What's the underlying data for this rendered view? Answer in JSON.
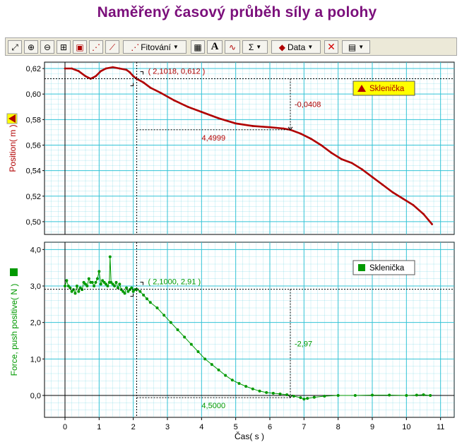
{
  "title": "Naměřený časový průběh síly a polohy",
  "toolbar": {
    "items": [
      {
        "name": "autoscale-icon",
        "glyph": "⤢"
      },
      {
        "name": "zoom-in-icon",
        "glyph": "⊕"
      },
      {
        "name": "zoom-out-icon",
        "glyph": "⊖"
      },
      {
        "name": "zoom-box-icon",
        "glyph": "⊞"
      },
      {
        "name": "examine-icon",
        "glyph": "▣"
      },
      {
        "name": "tangent-icon",
        "glyph": "⋰"
      },
      {
        "name": "slope-icon",
        "glyph": "⟋"
      }
    ],
    "fit_label": "Fitování",
    "calculator_icon": "calculator-icon",
    "annotate_label": "A",
    "stats_label": "Σ",
    "data_label": "Data",
    "delete_icon": "delete-icon",
    "graph_options_icon": "graph-options-icon"
  },
  "colors": {
    "position": "#b00000",
    "force": "#009900",
    "grid": "#33c3d6",
    "title": "#7b0f7b"
  },
  "chart_data": [
    {
      "type": "line",
      "title": "",
      "xlabel": "Čas( s )",
      "ylabel": "Position( m )",
      "xlim": [
        -0.6,
        11.4
      ],
      "ylim": [
        0.49,
        0.625
      ],
      "xticks": [
        "0",
        "1",
        "2",
        "3",
        "4",
        "5",
        "6",
        "7",
        "8",
        "9",
        "10",
        "11"
      ],
      "yticks": [
        "0,50",
        "0,52",
        "0,54",
        "0,56",
        "0,58",
        "0,60",
        "0,62"
      ],
      "yticks_values": [
        0.5,
        0.52,
        0.54,
        0.56,
        0.58,
        0.6,
        0.62
      ],
      "legend": "Sklenička",
      "legend_position": "top-right",
      "grid": true,
      "series": [
        {
          "name": "Sklenička",
          "x": [
            0,
            0.2,
            0.4,
            0.6,
            0.75,
            0.9,
            1.05,
            1.2,
            1.4,
            1.6,
            1.8,
            1.9,
            2.0,
            2.1,
            2.3,
            2.5,
            2.8,
            3.2,
            3.6,
            4.0,
            4.5,
            5.0,
            5.5,
            6.0,
            6.4,
            6.6,
            6.9,
            7.2,
            7.5,
            7.8,
            8.1,
            8.4,
            8.7,
            9.0,
            9.3,
            9.6,
            9.9,
            10.2,
            10.5,
            10.75
          ],
          "y": [
            0.62,
            0.62,
            0.618,
            0.614,
            0.612,
            0.614,
            0.618,
            0.62,
            0.621,
            0.62,
            0.619,
            0.617,
            0.614,
            0.612,
            0.609,
            0.605,
            0.601,
            0.595,
            0.59,
            0.586,
            0.581,
            0.577,
            0.575,
            0.574,
            0.573,
            0.572,
            0.569,
            0.565,
            0.56,
            0.554,
            0.549,
            0.546,
            0.541,
            0.535,
            0.529,
            0.523,
            0.518,
            0.513,
            0.506,
            0.498
          ]
        }
      ],
      "annotations": {
        "point_label": "( 2,1018, 0,612 )",
        "point_x": 2.1018,
        "point_y": 0.612,
        "end_x": 6.6,
        "end_y": 0.572,
        "dx_label": "4,4999",
        "dy_label": "-0,0408"
      }
    },
    {
      "type": "line",
      "title": "",
      "xlabel": "Čas( s )",
      "ylabel": "Force, push positive( N )",
      "xlim": [
        -0.6,
        11.4
      ],
      "ylim": [
        -0.6,
        4.2
      ],
      "xticks": [
        "0",
        "1",
        "2",
        "3",
        "4",
        "5",
        "6",
        "7",
        "8",
        "9",
        "10",
        "11"
      ],
      "yticks": [
        "0,0",
        "1,0",
        "2,0",
        "3,0",
        "4,0"
      ],
      "yticks_values": [
        0,
        1,
        2,
        3,
        4
      ],
      "legend": "Sklenička",
      "legend_position": "top-right",
      "grid": true,
      "series": [
        {
          "name": "Sklenička",
          "x": [
            0,
            0.05,
            0.1,
            0.15,
            0.2,
            0.25,
            0.3,
            0.35,
            0.4,
            0.45,
            0.5,
            0.55,
            0.6,
            0.65,
            0.7,
            0.75,
            0.8,
            0.85,
            0.9,
            0.95,
            1.0,
            1.05,
            1.1,
            1.15,
            1.2,
            1.25,
            1.3,
            1.32,
            1.35,
            1.4,
            1.45,
            1.5,
            1.55,
            1.6,
            1.65,
            1.7,
            1.75,
            1.8,
            1.85,
            1.9,
            1.95,
            2.0,
            2.05,
            2.1,
            2.2,
            2.3,
            2.4,
            2.5,
            2.7,
            2.9,
            3.1,
            3.3,
            3.5,
            3.7,
            3.9,
            4.1,
            4.3,
            4.5,
            4.7,
            4.9,
            5.1,
            5.3,
            5.5,
            5.7,
            5.9,
            6.1,
            6.3,
            6.5,
            6.7,
            6.9,
            7.0,
            7.1,
            7.3,
            7.6,
            8.0,
            8.5,
            9.0,
            9.5,
            10.0,
            10.3,
            10.5,
            10.7
          ],
          "y": [
            3.0,
            3.15,
            3.0,
            2.95,
            2.85,
            2.9,
            2.8,
            3.0,
            2.85,
            2.95,
            2.9,
            3.1,
            3.05,
            3.0,
            3.2,
            3.1,
            3.1,
            3.0,
            3.1,
            3.2,
            3.4,
            3.05,
            3.15,
            3.1,
            3.05,
            3.0,
            3.1,
            3.8,
            3.1,
            3.05,
            3.0,
            3.1,
            2.95,
            3.05,
            2.9,
            2.85,
            2.8,
            2.95,
            2.85,
            2.9,
            2.95,
            2.85,
            2.9,
            2.91,
            2.85,
            2.75,
            2.65,
            2.55,
            2.4,
            2.2,
            2.0,
            1.8,
            1.6,
            1.4,
            1.2,
            1.0,
            0.85,
            0.7,
            0.55,
            0.42,
            0.33,
            0.25,
            0.18,
            0.12,
            0.08,
            0.06,
            0.04,
            0.02,
            -0.02,
            -0.06,
            -0.1,
            -0.08,
            -0.05,
            -0.02,
            0.0,
            0.0,
            0.01,
            0.01,
            0.0,
            0.01,
            0.02,
            0.0
          ]
        }
      ],
      "annotations": {
        "point_label": "( 2,1000, 2,91 )",
        "point_x": 2.1,
        "point_y": 2.91,
        "end_x": 6.6,
        "end_y": -0.06,
        "dx_label": "4,5000",
        "dy_label": "-2,97"
      }
    }
  ]
}
